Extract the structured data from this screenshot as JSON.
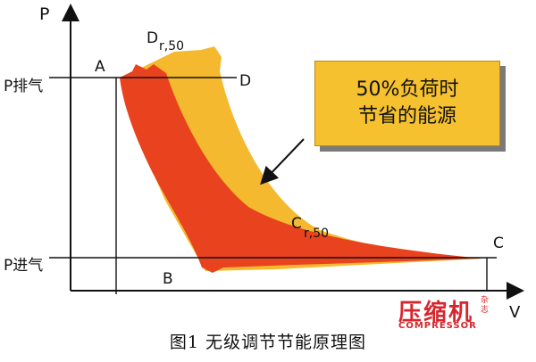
{
  "axes": {
    "y_label": "P",
    "x_label": "V"
  },
  "pressure_levels": {
    "discharge": "P排气",
    "suction": "P进气"
  },
  "points": {
    "A": "A",
    "B": "B",
    "C": "C",
    "D": "D",
    "D_partial": "D",
    "D_partial_sub": "r,50",
    "C_partial": "C",
    "C_partial_sub": "r,50"
  },
  "callout": {
    "line1": "50%负荷时",
    "line2": "节省的能源"
  },
  "colors": {
    "full_load": "#f4b92e",
    "partial_load": "#e8431e",
    "callout_bg": "#f6c12e"
  },
  "logo": {
    "main": "压缩机",
    "side": "杂志",
    "sub": "COMPRESSOR"
  },
  "caption": "图1  无级调节节能原理图"
}
